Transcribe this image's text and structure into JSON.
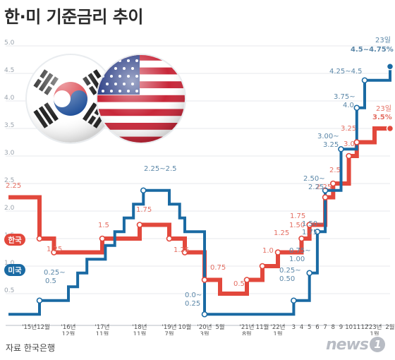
{
  "title": "한·미 기준금리 추이",
  "source": "자료 한국은행",
  "logo": {
    "text": "news",
    "badge": "1"
  },
  "colors": {
    "korea": "#e2483c",
    "us": "#1a6aa3",
    "grid": "#e7eaee"
  },
  "icons": [
    "south-korea-flag-icon",
    "us-flag-icon"
  ],
  "chart_data": {
    "type": "line",
    "step": true,
    "ylim": [
      0,
      5.0
    ],
    "yticks": [
      "0.5",
      "1.0",
      "1.5",
      "2.0",
      "2.5",
      "3.0",
      "3.5",
      "4.0",
      "4.5",
      "5.0"
    ],
    "x": [
      "'15년12월",
      "'16년12월",
      "'17년11월",
      "'18년11월",
      "'19년7월",
      "10월",
      "'20년3월",
      "5월",
      "'21년8월",
      "11월",
      "'22년1월",
      "3",
      "4",
      "5",
      "6",
      "7",
      "8",
      "9",
      "10",
      "11",
      "12",
      "'23년1월",
      "2월"
    ],
    "xtick_labels": [
      {
        "line1": "'15년12월",
        "line2": ""
      },
      {
        "line1": "'16년",
        "line2": "12월"
      },
      {
        "line1": "'17년",
        "line2": "11월"
      },
      {
        "line1": "'18년",
        "line2": "11월"
      },
      {
        "line1": "'19년",
        "line2": "7월"
      },
      {
        "line1": "10월",
        "line2": ""
      },
      {
        "line1": "'20년",
        "line2": "3월"
      },
      {
        "line1": "5월",
        "line2": ""
      },
      {
        "line1": "'21년",
        "line2": "8월"
      },
      {
        "line1": "11월",
        "line2": ""
      },
      {
        "line1": "'22년",
        "line2": "1월"
      },
      {
        "line1": "3",
        "line2": ""
      },
      {
        "line1": "4",
        "line2": ""
      },
      {
        "line1": "5",
        "line2": ""
      },
      {
        "line1": "6",
        "line2": ""
      },
      {
        "line1": "7",
        "line2": ""
      },
      {
        "line1": "8",
        "line2": ""
      },
      {
        "line1": "9",
        "line2": ""
      },
      {
        "line1": "10",
        "line2": ""
      },
      {
        "line1": "11",
        "line2": ""
      },
      {
        "line1": "12",
        "line2": ""
      },
      {
        "line1": "'23년",
        "line2": "1월"
      },
      {
        "line1": "2월",
        "line2": ""
      }
    ],
    "series": [
      {
        "name": "한국",
        "points": [
          {
            "x": "2015-06",
            "y": 2.25
          },
          {
            "x": "2015-12",
            "y": 1.5
          },
          {
            "x": "2016-06",
            "y": 1.25
          },
          {
            "x": "2017-11",
            "y": 1.5
          },
          {
            "x": "2018-11",
            "y": 1.75
          },
          {
            "x": "2019-07",
            "y": 1.5
          },
          {
            "x": "2019-10",
            "y": 1.25
          },
          {
            "x": "2020-03",
            "y": 0.75
          },
          {
            "x": "2020-05",
            "y": 0.5
          },
          {
            "x": "2021-08",
            "y": 0.75
          },
          {
            "x": "2021-11",
            "y": 1.0
          },
          {
            "x": "2022-01",
            "y": 1.25
          },
          {
            "x": "2022-04",
            "y": 1.5
          },
          {
            "x": "2022-05",
            "y": 1.75
          },
          {
            "x": "2022-07",
            "y": 2.25
          },
          {
            "x": "2022-08",
            "y": 2.5
          },
          {
            "x": "2022-10",
            "y": 3.0
          },
          {
            "x": "2022-11",
            "y": 3.25
          },
          {
            "x": "2023-01",
            "y": 3.5
          },
          {
            "x": "2023-02",
            "y": 3.5
          }
        ]
      },
      {
        "name": "미국",
        "points": [
          {
            "x": "2015-06",
            "y": 0.125
          },
          {
            "x": "2015-12",
            "y": 0.375
          },
          {
            "x": "2016-12",
            "y": 0.625
          },
          {
            "x": "2017-03",
            "y": 0.875
          },
          {
            "x": "2017-06",
            "y": 1.125
          },
          {
            "x": "2017-12",
            "y": 1.375
          },
          {
            "x": "2018-03",
            "y": 1.625
          },
          {
            "x": "2018-06",
            "y": 1.875
          },
          {
            "x": "2018-09",
            "y": 2.125
          },
          {
            "x": "2018-12",
            "y": 2.375
          },
          {
            "x": "2019-07",
            "y": 2.125
          },
          {
            "x": "2019-09",
            "y": 1.875
          },
          {
            "x": "2019-10",
            "y": 1.625
          },
          {
            "x": "2020-03",
            "y": 0.125
          },
          {
            "x": "2022-03",
            "y": 0.375
          },
          {
            "x": "2022-05",
            "y": 0.875
          },
          {
            "x": "2022-06",
            "y": 1.625
          },
          {
            "x": "2022-07",
            "y": 2.375
          },
          {
            "x": "2022-09",
            "y": 3.125
          },
          {
            "x": "2022-11",
            "y": 3.875
          },
          {
            "x": "2022-12",
            "y": 4.375
          },
          {
            "x": "2023-02",
            "y": 4.625
          }
        ]
      }
    ],
    "korea_labels": [
      "2.25",
      "1.25",
      "1.5",
      "1.75",
      "1.25",
      "0.75",
      "0.5",
      "1.0",
      "1.25",
      "1.50",
      "1.75",
      "2.25",
      "2.5",
      "3.0",
      "3.25",
      "23일",
      "3.5%"
    ],
    "us_labels": [
      "0.25~",
      "0.5",
      "2.25~2.5",
      "0.0~",
      "0.25",
      "0.25~",
      "0.50",
      "0.75~",
      "1.00",
      "1.50~",
      "1.75",
      "2.50~",
      "2.25",
      "3.00~",
      "3.25",
      "3.75~",
      "4.0",
      "4.25~4.5",
      "23일",
      "4.5~4.75%"
    ],
    "legend": [
      "한국",
      "미국"
    ]
  }
}
